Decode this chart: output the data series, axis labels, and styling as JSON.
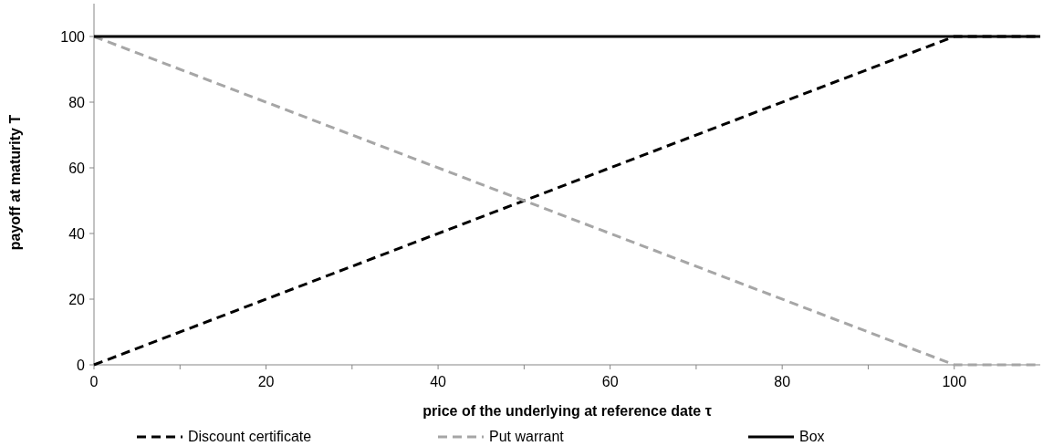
{
  "chart_data": {
    "type": "line",
    "xlabel": "price of the underlying at reference date τ",
    "ylabel": "payoff at maturity T",
    "xlim": [
      0,
      110
    ],
    "xticks": [
      0,
      {
        "value": 10,
        "label": null
      },
      20,
      {
        "value": 30,
        "label": null
      },
      40,
      {
        "value": 50,
        "label": null
      },
      60,
      {
        "value": 70,
        "label": null
      },
      80,
      {
        "value": 90,
        "label": null
      },
      100
    ],
    "ylim": [
      0,
      110
    ],
    "yticks": [
      0,
      20,
      40,
      60,
      80,
      100
    ],
    "grid": false,
    "legend": "bottom",
    "marker": "none",
    "series": [
      {
        "name": "Discount certificate",
        "color": "#000000",
        "line_style": "dashed",
        "x": [
          0,
          100,
          110
        ],
        "values": [
          0,
          100,
          100
        ]
      },
      {
        "name": "Put warrant",
        "color": "#a6a6a6",
        "line_style": "dashed",
        "x": [
          0,
          100,
          110
        ],
        "values": [
          100,
          0,
          0
        ]
      },
      {
        "name": "Box",
        "color": "#000000",
        "line_style": "solid",
        "x": [
          0,
          110
        ],
        "values": [
          100,
          100
        ]
      }
    ]
  }
}
